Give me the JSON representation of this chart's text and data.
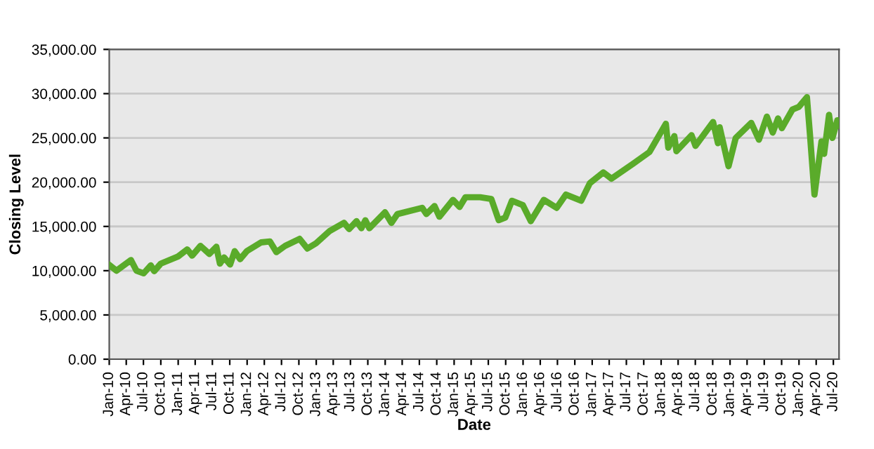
{
  "chart_data": {
    "type": "line",
    "xlabel": "Date",
    "ylabel": "Closing Level",
    "x": [
      "2010-01-04",
      "2010-02-08",
      "2010-04-26",
      "2010-05-25",
      "2010-07-02",
      "2010-08-09",
      "2010-08-27",
      "2010-10-01",
      "2010-12-31",
      "2011-02-18",
      "2011-03-16",
      "2011-04-29",
      "2011-06-15",
      "2011-07-22",
      "2011-08-10",
      "2011-09-01",
      "2011-10-03",
      "2011-10-27",
      "2011-11-25",
      "2011-12-30",
      "2012-03-15",
      "2012-05-01",
      "2012-06-04",
      "2012-07-20",
      "2012-10-05",
      "2012-11-15",
      "2012-12-31",
      "2013-03-14",
      "2013-05-28",
      "2013-06-24",
      "2013-08-02",
      "2013-08-28",
      "2013-09-18",
      "2013-10-09",
      "2013-12-31",
      "2014-02-03",
      "2014-03-07",
      "2014-07-16",
      "2014-08-07",
      "2014-09-19",
      "2014-10-15",
      "2014-12-26",
      "2015-01-30",
      "2015-03-02",
      "2015-05-19",
      "2015-07-17",
      "2015-08-25",
      "2015-09-29",
      "2015-11-03",
      "2015-12-31",
      "2016-02-11",
      "2016-04-20",
      "2016-06-27",
      "2016-08-15",
      "2016-11-04",
      "2016-12-20",
      "2017-03-01",
      "2017-04-13",
      "2017-08-07",
      "2017-10-31",
      "2018-01-26",
      "2018-02-08",
      "2018-03-12",
      "2018-03-23",
      "2018-06-11",
      "2018-07-02",
      "2018-10-03",
      "2018-10-29",
      "2018-11-07",
      "2018-12-24",
      "2019-01-31",
      "2019-04-23",
      "2019-06-03",
      "2019-07-15",
      "2019-08-15",
      "2019-09-12",
      "2019-10-02",
      "2019-11-27",
      "2019-12-31",
      "2020-02-12",
      "2020-02-28",
      "2020-03-23",
      "2020-04-29",
      "2020-05-13",
      "2020-06-08",
      "2020-06-26",
      "2020-07-22",
      "2020-07-31"
    ],
    "series": [
      {
        "color": "#5aab2a",
        "values": [
          10600,
          10000,
          11200,
          10000,
          9700,
          10600,
          9950,
          10800,
          11600,
          12400,
          11700,
          12800,
          11900,
          12700,
          10800,
          11500,
          10700,
          12200,
          11300,
          12200,
          13200,
          13300,
          12100,
          12800,
          13600,
          12500,
          13100,
          14500,
          15400,
          14700,
          15600,
          14800,
          15700,
          14800,
          16600,
          15400,
          16400,
          17100,
          16400,
          17300,
          16100,
          18000,
          17200,
          18300,
          18300,
          18100,
          15700,
          16000,
          17900,
          17400,
          15600,
          18000,
          17100,
          18600,
          17900,
          19900,
          21100,
          20400,
          22100,
          23400,
          26600,
          23900,
          25200,
          23500,
          25300,
          24100,
          26800,
          24400,
          26200,
          21800,
          25000,
          26700,
          24800,
          27400,
          25600,
          27200,
          26100,
          28200,
          28500,
          29600,
          25400,
          18600,
          24600,
          23200,
          27600,
          25000,
          27000,
          26400
        ]
      }
    ],
    "ylim": [
      0,
      35000
    ],
    "yticks": [
      {
        "value": 0,
        "label": "0.00"
      },
      {
        "value": 5000,
        "label": "5,000.00"
      },
      {
        "value": 10000,
        "label": "10,000.00"
      },
      {
        "value": 15000,
        "label": "15,000.00"
      },
      {
        "value": 20000,
        "label": "20,000.00"
      },
      {
        "value": 25000,
        "label": "25,000.00"
      },
      {
        "value": 30000,
        "label": "30,000.00"
      },
      {
        "value": 35000,
        "label": "35,000.00"
      }
    ],
    "xlim": [
      "2010-01-01",
      "2020-07-31"
    ],
    "xticks": [
      {
        "value": "2010-01-01",
        "label": "Jan-10"
      },
      {
        "value": "2010-04-01",
        "label": "Apr-10"
      },
      {
        "value": "2010-07-01",
        "label": "Jul-10"
      },
      {
        "value": "2010-10-01",
        "label": "Oct-10"
      },
      {
        "value": "2011-01-01",
        "label": "Jan-11"
      },
      {
        "value": "2011-04-01",
        "label": "Apr-11"
      },
      {
        "value": "2011-07-01",
        "label": "Jul-11"
      },
      {
        "value": "2011-10-01",
        "label": "Oct-11"
      },
      {
        "value": "2012-01-01",
        "label": "Jan-12"
      },
      {
        "value": "2012-04-01",
        "label": "Apr-12"
      },
      {
        "value": "2012-07-01",
        "label": "Jul-12"
      },
      {
        "value": "2012-10-01",
        "label": "Oct-12"
      },
      {
        "value": "2013-01-01",
        "label": "Jan-13"
      },
      {
        "value": "2013-04-01",
        "label": "Apr-13"
      },
      {
        "value": "2013-07-01",
        "label": "Jul-13"
      },
      {
        "value": "2013-10-01",
        "label": "Oct-13"
      },
      {
        "value": "2014-01-01",
        "label": "Jan-14"
      },
      {
        "value": "2014-04-01",
        "label": "Apr-14"
      },
      {
        "value": "2014-07-01",
        "label": "Jul-14"
      },
      {
        "value": "2014-10-01",
        "label": "Oct-14"
      },
      {
        "value": "2015-01-01",
        "label": "Jan-15"
      },
      {
        "value": "2015-04-01",
        "label": "Apr-15"
      },
      {
        "value": "2015-07-01",
        "label": "Jul-15"
      },
      {
        "value": "2015-10-01",
        "label": "Oct-15"
      },
      {
        "value": "2016-01-01",
        "label": "Jan-16"
      },
      {
        "value": "2016-04-01",
        "label": "Apr-16"
      },
      {
        "value": "2016-07-01",
        "label": "Jul-16"
      },
      {
        "value": "2016-10-01",
        "label": "Oct-16"
      },
      {
        "value": "2017-01-01",
        "label": "Jan-17"
      },
      {
        "value": "2017-04-01",
        "label": "Apr-17"
      },
      {
        "value": "2017-07-01",
        "label": "Jul-17"
      },
      {
        "value": "2017-10-01",
        "label": "Oct-17"
      },
      {
        "value": "2018-01-01",
        "label": "Jan-18"
      },
      {
        "value": "2018-04-01",
        "label": "Apr-18"
      },
      {
        "value": "2018-07-01",
        "label": "Jul-18"
      },
      {
        "value": "2018-10-01",
        "label": "Oct-18"
      },
      {
        "value": "2019-01-01",
        "label": "Jan-19"
      },
      {
        "value": "2019-04-01",
        "label": "Apr-19"
      },
      {
        "value": "2019-07-01",
        "label": "Jul-19"
      },
      {
        "value": "2019-10-01",
        "label": "Oct-19"
      },
      {
        "value": "2020-01-01",
        "label": "Jan-20"
      },
      {
        "value": "2020-04-01",
        "label": "Apr-20"
      },
      {
        "value": "2020-07-01",
        "label": "Jul-20"
      }
    ],
    "grid": "y",
    "legend": false,
    "marker": "none",
    "line_style": "solid"
  }
}
